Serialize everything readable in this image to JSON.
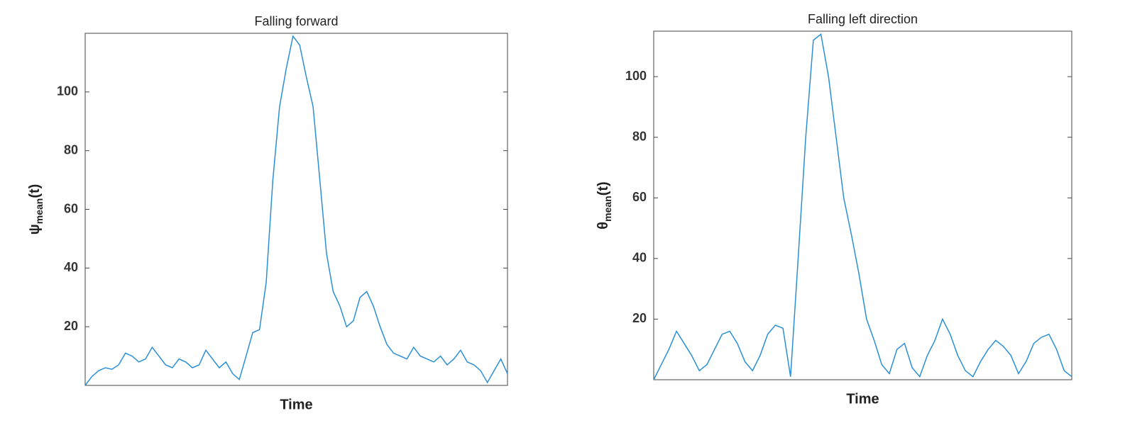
{
  "chart_data": [
    {
      "type": "line",
      "title": "Falling forward",
      "xlabel": "Time",
      "ylabel": {
        "symbol": "ψ",
        "subscript": "mean",
        "suffix": "(t)"
      },
      "color": "#2b8fd6",
      "ylim": [
        0,
        120
      ],
      "yticks": [
        20,
        40,
        60,
        80,
        100
      ],
      "grid": false,
      "values": [
        0,
        3,
        5,
        6,
        5.5,
        7,
        11,
        10,
        8,
        9,
        13,
        10,
        7,
        6,
        9,
        8,
        6,
        7,
        12,
        9,
        6,
        8,
        4,
        2,
        10,
        18,
        19,
        35,
        70,
        95,
        108,
        119,
        116,
        105,
        95,
        70,
        45,
        32,
        27,
        20,
        22,
        30,
        32,
        27,
        20,
        14,
        11,
        10,
        9,
        13,
        10,
        9,
        8,
        10,
        7,
        9,
        12,
        8,
        7,
        5,
        1,
        5,
        9,
        4
      ]
    },
    {
      "type": "line",
      "title": "Falling left direction",
      "xlabel": "Time",
      "ylabel": {
        "symbol": "θ",
        "subscript": "mean",
        "suffix": "(t)"
      },
      "color": "#2b8fd6",
      "ylim": [
        0,
        115
      ],
      "yticks": [
        20,
        40,
        60,
        80,
        100
      ],
      "grid": false,
      "values": [
        0,
        5,
        10,
        16,
        12,
        8,
        3,
        5,
        10,
        15,
        16,
        12,
        6,
        3,
        8,
        15,
        18,
        17,
        1,
        40,
        80,
        112,
        114,
        100,
        80,
        60,
        48,
        35,
        20,
        13,
        5,
        2,
        10,
        12,
        4,
        1,
        8,
        13,
        20,
        15,
        8,
        3,
        1,
        6,
        10,
        13,
        11,
        8,
        2,
        6,
        12,
        14,
        15,
        10,
        3,
        1
      ]
    }
  ]
}
